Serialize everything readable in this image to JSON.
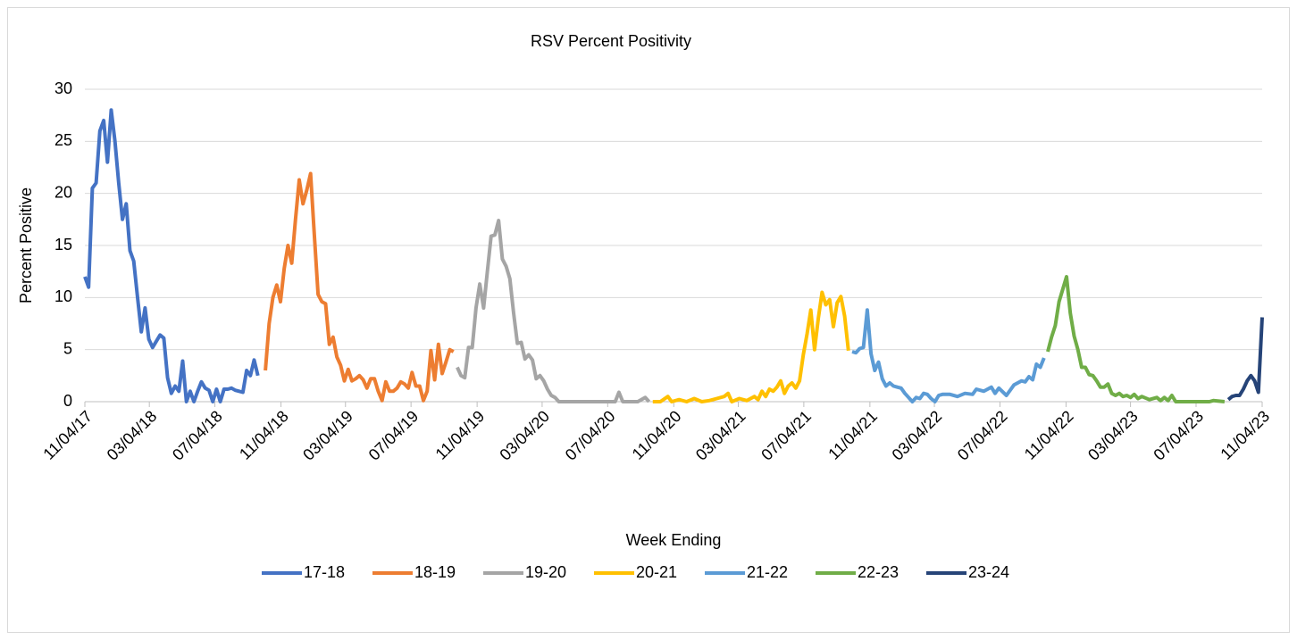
{
  "chart_data": {
    "type": "line",
    "title": "RSV Percent Positivity",
    "x_label": "Week Ending",
    "y_label": "Percent Positive",
    "xlim": [
      "11/04/17",
      "11/04/23"
    ],
    "xticks": [
      "11/04/17",
      "03/04/18",
      "07/04/18",
      "11/04/18",
      "03/04/19",
      "07/04/19",
      "11/04/19",
      "03/04/20",
      "07/04/20",
      "11/04/20",
      "03/04/21",
      "07/04/21",
      "11/04/21",
      "03/04/22",
      "07/04/22",
      "11/04/22",
      "03/04/23",
      "07/04/23",
      "11/04/23"
    ],
    "ylim": [
      0,
      30
    ],
    "yticks": [
      0,
      5,
      10,
      15,
      20,
      25,
      30
    ],
    "grid": true,
    "legend": "bottom",
    "series": [
      {
        "name": "17-18",
        "color": "#4472c4",
        "x": [
          "11/04/17",
          "11/11/17",
          "11/18/17",
          "11/25/17",
          "12/02/17",
          "12/09/17",
          "12/16/17",
          "12/23/17",
          "12/30/17",
          "01/06/18",
          "01/13/18",
          "01/20/18",
          "01/27/18",
          "02/03/18",
          "02/10/18",
          "02/17/18",
          "02/24/18",
          "03/03/18",
          "03/10/18",
          "03/17/18",
          "03/24/18",
          "03/31/18",
          "04/07/18",
          "04/14/18",
          "04/21/18",
          "04/28/18",
          "05/05/18",
          "05/12/18",
          "05/19/18",
          "05/26/18",
          "06/02/18",
          "06/09/18",
          "06/16/18",
          "06/23/18",
          "06/30/18",
          "07/07/18",
          "07/14/18",
          "07/21/18",
          "07/28/18",
          "08/04/18",
          "08/11/18",
          "08/18/18",
          "08/25/18",
          "09/01/18",
          "09/08/18",
          "09/15/18",
          "09/22/18"
        ],
        "values": [
          12,
          11,
          20.5,
          21,
          26,
          27,
          23,
          28,
          25,
          21,
          17.5,
          19,
          14.5,
          13.5,
          10,
          6.7,
          9,
          6,
          5.2,
          5.8,
          6.4,
          6.1,
          2.3,
          0.8,
          1.5,
          1,
          3.9,
          0,
          1,
          0,
          1,
          1.9,
          1.3,
          1.1,
          0,
          1.2,
          0,
          1.2,
          1.2,
          1.3,
          1.1,
          1,
          0.9,
          3,
          2.5,
          4,
          2.5
        ]
      },
      {
        "name": "18-19",
        "color": "#ed7d31",
        "x": [
          "10/06/18",
          "10/13/18",
          "10/20/18",
          "10/27/18",
          "11/03/18",
          "11/10/18",
          "11/17/18",
          "11/24/18",
          "12/01/18",
          "12/08/18",
          "12/15/18",
          "12/22/18",
          "12/29/18",
          "01/05/19",
          "01/12/19",
          "01/19/19",
          "01/26/19",
          "02/02/19",
          "02/09/19",
          "02/16/19",
          "02/23/19",
          "03/02/19",
          "03/09/19",
          "03/16/19",
          "03/23/19",
          "03/30/19",
          "04/06/19",
          "04/13/19",
          "04/20/19",
          "04/27/19",
          "05/04/19",
          "05/11/19",
          "05/18/19",
          "05/25/19",
          "06/01/19",
          "06/08/19",
          "06/15/19",
          "06/22/19",
          "06/29/19",
          "07/06/19",
          "07/13/19",
          "07/20/19",
          "07/27/19",
          "08/03/19",
          "08/10/19",
          "08/17/19",
          "08/24/19",
          "08/31/19",
          "09/07/19",
          "09/14/19",
          "09/21/19"
        ],
        "values": [
          3,
          7.5,
          10,
          11.2,
          9.6,
          12.8,
          15,
          13.3,
          17.5,
          21.3,
          19,
          20.3,
          21.9,
          16,
          10.3,
          9.6,
          9.4,
          5.5,
          6.2,
          4.3,
          3.5,
          2,
          3.1,
          2,
          2.2,
          2.5,
          2.1,
          1.3,
          2.2,
          2.2,
          1,
          0.1,
          1.9,
          1,
          1,
          1.3,
          1.9,
          1.7,
          1.3,
          2.8,
          1.5,
          1.5,
          0.1,
          1,
          4.9,
          2.1,
          5.5,
          2.7,
          3.8,
          5,
          4.8
        ]
      },
      {
        "name": "19-20",
        "color": "#a5a5a5",
        "x": [
          "09/28/19",
          "10/05/19",
          "10/12/19",
          "10/19/19",
          "10/26/19",
          "11/02/19",
          "11/09/19",
          "11/16/19",
          "11/23/19",
          "11/30/19",
          "12/07/19",
          "12/14/19",
          "12/21/19",
          "12/28/19",
          "01/04/20",
          "01/11/20",
          "01/18/20",
          "01/25/20",
          "02/01/20",
          "02/08/20",
          "02/15/20",
          "02/22/20",
          "02/29/20",
          "03/07/20",
          "03/14/20",
          "03/21/20",
          "03/28/20",
          "04/04/20",
          "05/02/20",
          "06/06/20",
          "07/04/20",
          "07/18/20",
          "07/25/20",
          "08/01/20",
          "08/29/20",
          "09/12/20",
          "09/19/20"
        ],
        "values": [
          3.3,
          2.5,
          2.3,
          5.2,
          5.2,
          9,
          11.3,
          9,
          12.5,
          15.9,
          16,
          17.4,
          13.7,
          13,
          11.8,
          8.5,
          5.6,
          5.7,
          4.1,
          4.5,
          4,
          2.2,
          2.5,
          2,
          1.2,
          0.6,
          0.4,
          0,
          0,
          0,
          0,
          0,
          0.9,
          0,
          0,
          0.4,
          0
        ]
      },
      {
        "name": "20-21",
        "color": "#ffc000",
        "x": [
          "09/26/20",
          "10/10/20",
          "10/24/20",
          "10/31/20",
          "11/14/20",
          "11/28/20",
          "12/12/20",
          "12/26/20",
          "01/09/21",
          "01/23/21",
          "02/06/21",
          "02/13/21",
          "02/20/21",
          "03/06/21",
          "03/20/21",
          "04/03/21",
          "04/10/21",
          "04/17/21",
          "04/24/21",
          "05/01/21",
          "05/08/21",
          "05/15/21",
          "05/22/21",
          "05/29/21",
          "06/05/21",
          "06/12/21",
          "06/19/21",
          "06/26/21",
          "07/03/21",
          "07/10/21",
          "07/17/21",
          "07/24/21",
          "07/31/21",
          "08/07/21",
          "08/14/21",
          "08/21/21",
          "08/28/21",
          "09/04/21",
          "09/11/21",
          "09/18/21",
          "09/25/21"
        ],
        "values": [
          0,
          0,
          0.5,
          0,
          0.2,
          0,
          0.3,
          0,
          0.1,
          0.3,
          0.5,
          0.8,
          0,
          0.3,
          0.1,
          0.5,
          0.2,
          1,
          0.5,
          1.2,
          1,
          1.4,
          2,
          0.8,
          1.5,
          1.8,
          1.3,
          2,
          4.5,
          6.5,
          8.8,
          5,
          8,
          10.5,
          9.3,
          9.8,
          7.2,
          9.5,
          10.1,
          8.2,
          4.9
        ]
      },
      {
        "name": "21-22",
        "color": "#5b9bd5",
        "x": [
          "10/02/21",
          "10/09/21",
          "10/16/21",
          "10/23/21",
          "10/30/21",
          "11/06/21",
          "11/13/21",
          "11/20/21",
          "11/27/21",
          "12/04/21",
          "12/11/21",
          "12/18/21",
          "12/25/21",
          "01/01/22",
          "01/08/22",
          "01/15/22",
          "01/22/22",
          "01/29/22",
          "02/05/22",
          "02/12/22",
          "02/19/22",
          "02/26/22",
          "03/05/22",
          "03/12/22",
          "03/19/22",
          "04/02/22",
          "04/16/22",
          "04/30/22",
          "05/14/22",
          "05/21/22",
          "06/04/22",
          "06/18/22",
          "06/25/22",
          "07/02/22",
          "07/16/22",
          "07/30/22",
          "08/13/22",
          "08/20/22",
          "08/27/22",
          "09/03/22",
          "09/10/22",
          "09/17/22",
          "09/24/22"
        ],
        "values": [
          4.8,
          4.7,
          5.1,
          5.2,
          8.8,
          4.6,
          3,
          3.8,
          2.2,
          1.5,
          1.8,
          1.5,
          1.4,
          1.3,
          0.8,
          0.4,
          0,
          0.4,
          0.3,
          0.8,
          0.7,
          0.3,
          0,
          0.6,
          0.7,
          0.7,
          0.5,
          0.8,
          0.7,
          1.2,
          1,
          1.4,
          0.8,
          1.3,
          0.6,
          1.6,
          2,
          1.9,
          2.4,
          2.1,
          3.6,
          3.3,
          4.2
        ]
      },
      {
        "name": "22-23",
        "color": "#70ad47",
        "x": [
          "10/01/22",
          "10/08/22",
          "10/15/22",
          "10/22/22",
          "10/29/22",
          "11/05/22",
          "11/12/22",
          "11/19/22",
          "11/26/22",
          "12/03/22",
          "12/10/22",
          "12/17/22",
          "12/24/22",
          "12/31/22",
          "01/07/23",
          "01/14/23",
          "01/21/23",
          "01/28/23",
          "02/04/23",
          "02/11/23",
          "02/18/23",
          "02/25/23",
          "03/04/23",
          "03/11/23",
          "03/18/23",
          "03/25/23",
          "04/08/23",
          "04/22/23",
          "04/29/23",
          "05/06/23",
          "05/13/23",
          "05/20/23",
          "05/27/23",
          "06/17/23",
          "07/08/23",
          "07/29/23",
          "08/05/23",
          "08/26/23"
        ],
        "values": [
          4.8,
          6.2,
          7.3,
          9.6,
          10.8,
          12,
          8.5,
          6.3,
          5,
          3.3,
          3.3,
          2.6,
          2.5,
          2,
          1.4,
          1.4,
          1.7,
          0.8,
          0.6,
          0.8,
          0.5,
          0.6,
          0.4,
          0.7,
          0.3,
          0.5,
          0.2,
          0.4,
          0.1,
          0.4,
          0.1,
          0.6,
          0,
          0,
          0,
          0,
          0.1,
          0
        ]
      },
      {
        "name": "23-24",
        "color": "#264478",
        "x": [
          "09/02/23",
          "09/09/23",
          "09/16/23",
          "09/23/23",
          "09/30/23",
          "10/07/23",
          "10/14/23",
          "10/21/23",
          "10/28/23",
          "11/04/23"
        ],
        "values": [
          0.2,
          0.5,
          0.6,
          0.6,
          1.2,
          2,
          2.5,
          2,
          0.9,
          8.1
        ]
      }
    ]
  }
}
